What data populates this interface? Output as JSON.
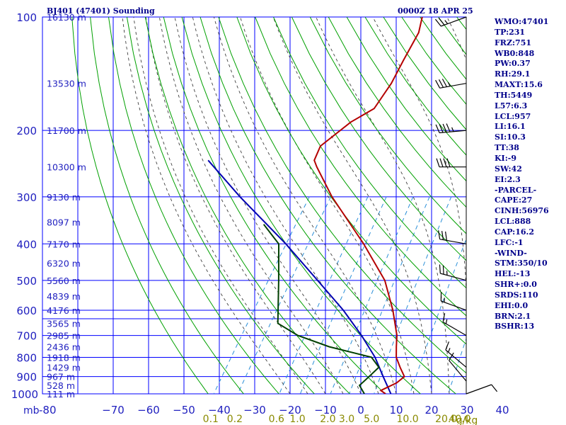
{
  "header": {
    "station": "BJ401 (47401) Sounding",
    "valid_time": "0000Z 18 APR 25"
  },
  "indices": [
    "WMO:47401",
    "TP:231",
    "FRZ:751",
    "WB0:848",
    "PW:0.37",
    "RH:29.1",
    "MAXT:15.6",
    "TH:5449",
    "L57:6.3",
    "LCL:957",
    "LI:16.1",
    "SI:10.3",
    "TT:38",
    "KI:-9",
    "SW:42",
    "EI:2.3",
    "-PARCEL-",
    "CAPE:27",
    "CINH:56976",
    "LCL:888",
    "CAP:16.2",
    "LFC:-1",
    "-WIND-",
    "STM:350/10",
    "HEL:-13",
    "SHR+:0.0",
    "SRDS:110",
    "EHI:0.0",
    "BRN:2.1",
    "BSHR:13"
  ],
  "colors": {
    "isobar_isotherm_grid": "#0000ff",
    "dry_adiabat": "#00a000",
    "moist_adiabat": "#404040",
    "mixing_ratio": "#2a8fd8",
    "temperature_profile": "#b40000",
    "dewpoint_profile": "#004000",
    "parcel_path": "#0000b0",
    "wind_barb": "#000000"
  },
  "chart_data": {
    "type": "skew-t log-p sounding",
    "pressure_unit_label": "mb",
    "mixing_ratio_unit_label": "g/kg",
    "pressure_levels": [
      100,
      200,
      300,
      400,
      500,
      600,
      700,
      800,
      900,
      1000
    ],
    "pressure_tick_labels": [
      "100",
      "200",
      "300",
      "400",
      "500",
      "600",
      "700",
      "800",
      "900",
      "1000"
    ],
    "temperature_ticks": [
      -80,
      -70,
      -60,
      -50,
      -40,
      -30,
      -20,
      -10,
      0,
      10,
      20,
      30,
      40
    ],
    "temperature_tick_labels": [
      "-80",
      "−70",
      "−60",
      "−50",
      "−40",
      "−30",
      "−20",
      "−10",
      "0",
      "10",
      "20",
      "30",
      "40"
    ],
    "height_labels": [
      {
        "p": 100,
        "label": "16130 m"
      },
      {
        "p": 150,
        "label": "13530 m"
      },
      {
        "p": 200,
        "label": "11700 m"
      },
      {
        "p": 250,
        "label": "10300 m"
      },
      {
        "p": 300,
        "label": "9130 m"
      },
      {
        "p": 350,
        "label": "8097 m"
      },
      {
        "p": 400,
        "label": "7170 m"
      },
      {
        "p": 450,
        "label": "6320 m"
      },
      {
        "p": 500,
        "label": "5560 m"
      },
      {
        "p": 550,
        "label": "4839 m"
      },
      {
        "p": 600,
        "label": "4176 m"
      },
      {
        "p": 650,
        "label": "3565 m"
      },
      {
        "p": 700,
        "label": "2985 m"
      },
      {
        "p": 750,
        "label": "2436 m"
      },
      {
        "p": 800,
        "label": "1918 m"
      },
      {
        "p": 850,
        "label": "1429 m"
      },
      {
        "p": 900,
        "label": "967 m"
      },
      {
        "p": 950,
        "label": "528 m"
      },
      {
        "p": 1000,
        "label": "111 m"
      }
    ],
    "mixing_ratio_labels": [
      {
        "w": 0.1,
        "label": "0.1"
      },
      {
        "w": 0.2,
        "label": "0.2"
      },
      {
        "w": 0.6,
        "label": "0.6"
      },
      {
        "w": 1.0,
        "label": "1.0"
      },
      {
        "w": 2.0,
        "label": "2.0"
      },
      {
        "w": 3.0,
        "label": "3.0"
      },
      {
        "w": 5.0,
        "label": "5.0"
      },
      {
        "w": 10.0,
        "label": "10.0"
      },
      {
        "w": 20.0,
        "label": "20.0"
      },
      {
        "w": 40.0,
        "label": "40.0"
      }
    ],
    "temperature_profile": [
      {
        "p": 100,
        "t": -55
      },
      {
        "p": 110,
        "t": -53
      },
      {
        "p": 130,
        "t": -52
      },
      {
        "p": 150,
        "t": -51
      },
      {
        "p": 175,
        "t": -51
      },
      {
        "p": 190,
        "t": -55
      },
      {
        "p": 220,
        "t": -59
      },
      {
        "p": 240,
        "t": -58
      },
      {
        "p": 250,
        "t": -56
      },
      {
        "p": 300,
        "t": -46
      },
      {
        "p": 400,
        "t": -28
      },
      {
        "p": 500,
        "t": -15
      },
      {
        "p": 600,
        "t": -7
      },
      {
        "p": 700,
        "t": -1
      },
      {
        "p": 750,
        "t": 1
      },
      {
        "p": 800,
        "t": 3
      },
      {
        "p": 850,
        "t": 6
      },
      {
        "p": 900,
        "t": 9
      },
      {
        "p": 935,
        "t": 8
      },
      {
        "p": 980,
        "t": 5
      },
      {
        "p": 1000,
        "t": 7
      }
    ],
    "dewpoint_profile": [
      {
        "p": 355,
        "t": -60
      },
      {
        "p": 400,
        "t": -52
      },
      {
        "p": 500,
        "t": -45
      },
      {
        "p": 650,
        "t": -37
      },
      {
        "p": 700,
        "t": -29
      },
      {
        "p": 750,
        "t": -18
      },
      {
        "p": 800,
        "t": -4
      },
      {
        "p": 850,
        "t": 0
      },
      {
        "p": 900,
        "t": -1
      },
      {
        "p": 950,
        "t": -2
      },
      {
        "p": 1000,
        "t": 1
      }
    ],
    "parcel_path": [
      {
        "p": 240,
        "t": -88
      },
      {
        "p": 300,
        "t": -72
      },
      {
        "p": 400,
        "t": -50
      },
      {
        "p": 500,
        "t": -34
      },
      {
        "p": 600,
        "t": -21
      },
      {
        "p": 700,
        "t": -11
      },
      {
        "p": 800,
        "t": -3
      },
      {
        "p": 900,
        "t": 3
      },
      {
        "p": 1000,
        "t": 8.5
      }
    ],
    "wind_barbs": [
      {
        "p": 100,
        "dir": 250,
        "speed": 25
      },
      {
        "p": 150,
        "dir": 260,
        "speed": 35
      },
      {
        "p": 200,
        "dir": 265,
        "speed": 45
      },
      {
        "p": 250,
        "dir": 270,
        "speed": 40
      },
      {
        "p": 400,
        "dir": 280,
        "speed": 30
      },
      {
        "p": 500,
        "dir": 285,
        "speed": 25
      },
      {
        "p": 600,
        "dir": 290,
        "speed": 15
      },
      {
        "p": 700,
        "dir": 300,
        "speed": 15
      },
      {
        "p": 850,
        "dir": 310,
        "speed": 15
      },
      {
        "p": 925,
        "dir": 320,
        "speed": 10
      },
      {
        "p": 1000,
        "dir": 70,
        "speed": 10
      }
    ]
  }
}
